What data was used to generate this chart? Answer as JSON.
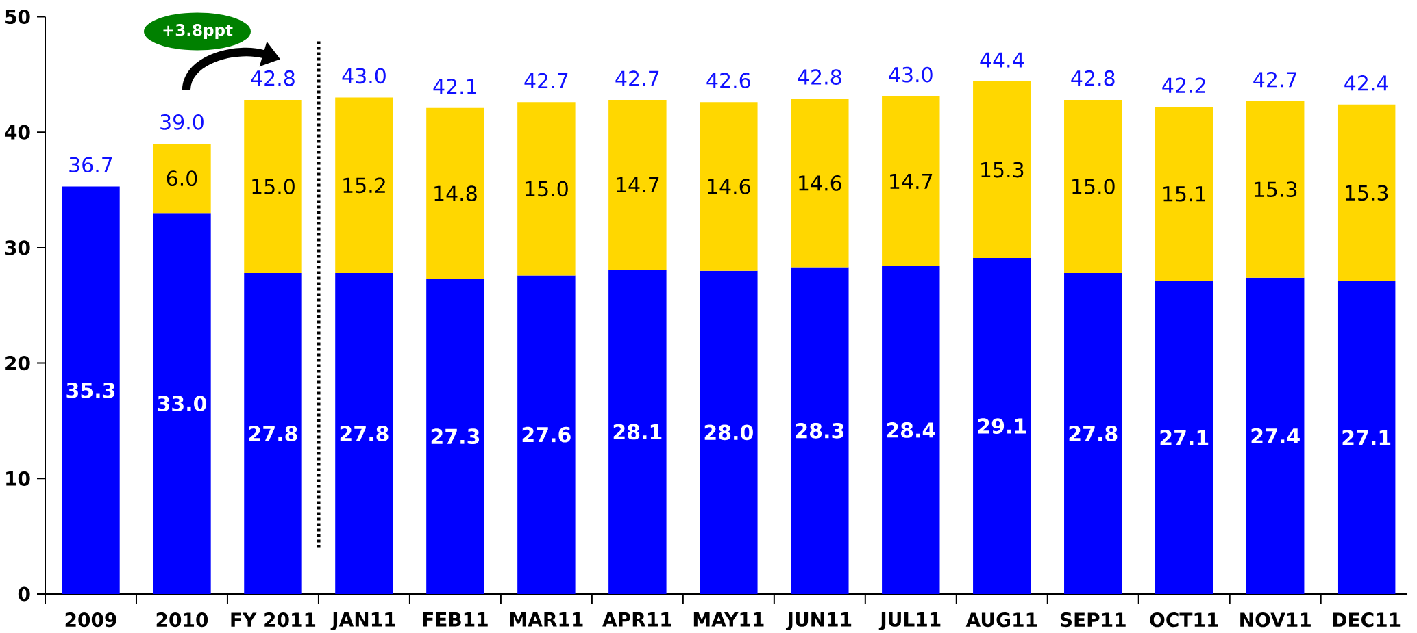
{
  "chart_data": {
    "type": "bar",
    "stacked": true,
    "categories": [
      "2009",
      "2010",
      "FY 2011",
      "JAN11",
      "FEB11",
      "MAR11",
      "APR11",
      "MAY11",
      "JUN11",
      "JUL11",
      "AUG11",
      "SEP11",
      "OCT11",
      "NOV11",
      "DEC11"
    ],
    "series": [
      {
        "color": "#0000ff",
        "values": [
          35.3,
          33.0,
          27.8,
          27.8,
          27.3,
          27.6,
          28.1,
          28.0,
          28.3,
          28.4,
          29.1,
          27.8,
          27.1,
          27.4,
          27.1
        ],
        "value_labels": [
          "35.3",
          "33.0",
          "27.8",
          "27.8",
          "27.3",
          "27.6",
          "28.1",
          "28.0",
          "28.3",
          "28.4",
          "29.1",
          "27.8",
          "27.1",
          "27.4",
          "27.1"
        ]
      },
      {
        "color": "#ffd700",
        "values": [
          null,
          6.0,
          15.0,
          15.2,
          14.8,
          15.0,
          14.7,
          14.6,
          14.6,
          14.7,
          15.3,
          15.0,
          15.1,
          15.3,
          15.3
        ],
        "value_labels": [
          null,
          "6.0",
          "15.0",
          "15.2",
          "14.8",
          "15.0",
          "14.7",
          "14.6",
          "14.6",
          "14.7",
          "15.3",
          "15.0",
          "15.1",
          "15.3",
          "15.3"
        ]
      }
    ],
    "totals": [
      null,
      "39.0",
      "42.8",
      "43.0",
      "42.1",
      "42.7",
      "42.7",
      "42.6",
      "42.8",
      "43.0",
      "44.4",
      "42.8",
      "42.2",
      "42.7",
      "42.4"
    ],
    "ylim": [
      0,
      50
    ],
    "yticks": [
      0,
      10,
      20,
      30,
      40,
      50
    ],
    "annotations": [
      "+3.8ppt",
      {
        "text": "36.7",
        "x": "2009",
        "y": 35.3
      }
    ]
  }
}
